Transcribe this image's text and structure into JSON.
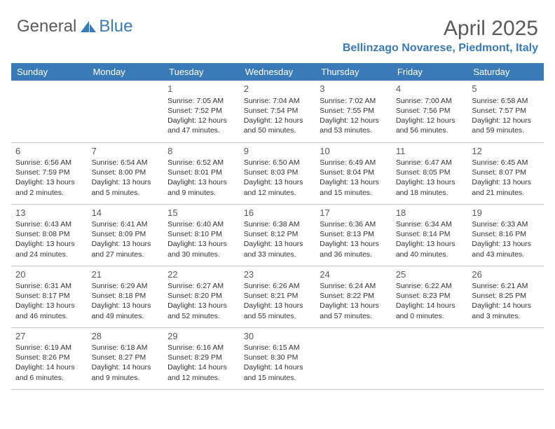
{
  "brand": {
    "part1": "General",
    "part2": "Blue",
    "part1_color": "#5a5a5a",
    "part2_color": "#3a7ab8",
    "icon_color": "#3a7ab8"
  },
  "header": {
    "month_title": "April 2025",
    "location": "Bellinzago Novarese, Piedmont, Italy",
    "title_color": "#5a5a5a",
    "location_color": "#3a7ab8"
  },
  "theme": {
    "header_bg": "#3a7ab8",
    "header_text": "#ffffff",
    "grid_border": "#c8c8c8",
    "cell_text": "#333333",
    "daynum_color": "#5a5a5a",
    "body_bg": "#ffffff"
  },
  "weekdays": [
    "Sunday",
    "Monday",
    "Tuesday",
    "Wednesday",
    "Thursday",
    "Friday",
    "Saturday"
  ],
  "weeks": [
    [
      null,
      null,
      {
        "n": "1",
        "sunrise": "Sunrise: 7:05 AM",
        "sunset": "Sunset: 7:52 PM",
        "day1": "Daylight: 12 hours",
        "day2": "and 47 minutes."
      },
      {
        "n": "2",
        "sunrise": "Sunrise: 7:04 AM",
        "sunset": "Sunset: 7:54 PM",
        "day1": "Daylight: 12 hours",
        "day2": "and 50 minutes."
      },
      {
        "n": "3",
        "sunrise": "Sunrise: 7:02 AM",
        "sunset": "Sunset: 7:55 PM",
        "day1": "Daylight: 12 hours",
        "day2": "and 53 minutes."
      },
      {
        "n": "4",
        "sunrise": "Sunrise: 7:00 AM",
        "sunset": "Sunset: 7:56 PM",
        "day1": "Daylight: 12 hours",
        "day2": "and 56 minutes."
      },
      {
        "n": "5",
        "sunrise": "Sunrise: 6:58 AM",
        "sunset": "Sunset: 7:57 PM",
        "day1": "Daylight: 12 hours",
        "day2": "and 59 minutes."
      }
    ],
    [
      {
        "n": "6",
        "sunrise": "Sunrise: 6:56 AM",
        "sunset": "Sunset: 7:59 PM",
        "day1": "Daylight: 13 hours",
        "day2": "and 2 minutes."
      },
      {
        "n": "7",
        "sunrise": "Sunrise: 6:54 AM",
        "sunset": "Sunset: 8:00 PM",
        "day1": "Daylight: 13 hours",
        "day2": "and 5 minutes."
      },
      {
        "n": "8",
        "sunrise": "Sunrise: 6:52 AM",
        "sunset": "Sunset: 8:01 PM",
        "day1": "Daylight: 13 hours",
        "day2": "and 9 minutes."
      },
      {
        "n": "9",
        "sunrise": "Sunrise: 6:50 AM",
        "sunset": "Sunset: 8:03 PM",
        "day1": "Daylight: 13 hours",
        "day2": "and 12 minutes."
      },
      {
        "n": "10",
        "sunrise": "Sunrise: 6:49 AM",
        "sunset": "Sunset: 8:04 PM",
        "day1": "Daylight: 13 hours",
        "day2": "and 15 minutes."
      },
      {
        "n": "11",
        "sunrise": "Sunrise: 6:47 AM",
        "sunset": "Sunset: 8:05 PM",
        "day1": "Daylight: 13 hours",
        "day2": "and 18 minutes."
      },
      {
        "n": "12",
        "sunrise": "Sunrise: 6:45 AM",
        "sunset": "Sunset: 8:07 PM",
        "day1": "Daylight: 13 hours",
        "day2": "and 21 minutes."
      }
    ],
    [
      {
        "n": "13",
        "sunrise": "Sunrise: 6:43 AM",
        "sunset": "Sunset: 8:08 PM",
        "day1": "Daylight: 13 hours",
        "day2": "and 24 minutes."
      },
      {
        "n": "14",
        "sunrise": "Sunrise: 6:41 AM",
        "sunset": "Sunset: 8:09 PM",
        "day1": "Daylight: 13 hours",
        "day2": "and 27 minutes."
      },
      {
        "n": "15",
        "sunrise": "Sunrise: 6:40 AM",
        "sunset": "Sunset: 8:10 PM",
        "day1": "Daylight: 13 hours",
        "day2": "and 30 minutes."
      },
      {
        "n": "16",
        "sunrise": "Sunrise: 6:38 AM",
        "sunset": "Sunset: 8:12 PM",
        "day1": "Daylight: 13 hours",
        "day2": "and 33 minutes."
      },
      {
        "n": "17",
        "sunrise": "Sunrise: 6:36 AM",
        "sunset": "Sunset: 8:13 PM",
        "day1": "Daylight: 13 hours",
        "day2": "and 36 minutes."
      },
      {
        "n": "18",
        "sunrise": "Sunrise: 6:34 AM",
        "sunset": "Sunset: 8:14 PM",
        "day1": "Daylight: 13 hours",
        "day2": "and 40 minutes."
      },
      {
        "n": "19",
        "sunrise": "Sunrise: 6:33 AM",
        "sunset": "Sunset: 8:16 PM",
        "day1": "Daylight: 13 hours",
        "day2": "and 43 minutes."
      }
    ],
    [
      {
        "n": "20",
        "sunrise": "Sunrise: 6:31 AM",
        "sunset": "Sunset: 8:17 PM",
        "day1": "Daylight: 13 hours",
        "day2": "and 46 minutes."
      },
      {
        "n": "21",
        "sunrise": "Sunrise: 6:29 AM",
        "sunset": "Sunset: 8:18 PM",
        "day1": "Daylight: 13 hours",
        "day2": "and 49 minutes."
      },
      {
        "n": "22",
        "sunrise": "Sunrise: 6:27 AM",
        "sunset": "Sunset: 8:20 PM",
        "day1": "Daylight: 13 hours",
        "day2": "and 52 minutes."
      },
      {
        "n": "23",
        "sunrise": "Sunrise: 6:26 AM",
        "sunset": "Sunset: 8:21 PM",
        "day1": "Daylight: 13 hours",
        "day2": "and 55 minutes."
      },
      {
        "n": "24",
        "sunrise": "Sunrise: 6:24 AM",
        "sunset": "Sunset: 8:22 PM",
        "day1": "Daylight: 13 hours",
        "day2": "and 57 minutes."
      },
      {
        "n": "25",
        "sunrise": "Sunrise: 6:22 AM",
        "sunset": "Sunset: 8:23 PM",
        "day1": "Daylight: 14 hours",
        "day2": "and 0 minutes."
      },
      {
        "n": "26",
        "sunrise": "Sunrise: 6:21 AM",
        "sunset": "Sunset: 8:25 PM",
        "day1": "Daylight: 14 hours",
        "day2": "and 3 minutes."
      }
    ],
    [
      {
        "n": "27",
        "sunrise": "Sunrise: 6:19 AM",
        "sunset": "Sunset: 8:26 PM",
        "day1": "Daylight: 14 hours",
        "day2": "and 6 minutes."
      },
      {
        "n": "28",
        "sunrise": "Sunrise: 6:18 AM",
        "sunset": "Sunset: 8:27 PM",
        "day1": "Daylight: 14 hours",
        "day2": "and 9 minutes."
      },
      {
        "n": "29",
        "sunrise": "Sunrise: 6:16 AM",
        "sunset": "Sunset: 8:29 PM",
        "day1": "Daylight: 14 hours",
        "day2": "and 12 minutes."
      },
      {
        "n": "30",
        "sunrise": "Sunrise: 6:15 AM",
        "sunset": "Sunset: 8:30 PM",
        "day1": "Daylight: 14 hours",
        "day2": "and 15 minutes."
      },
      null,
      null,
      null
    ]
  ]
}
